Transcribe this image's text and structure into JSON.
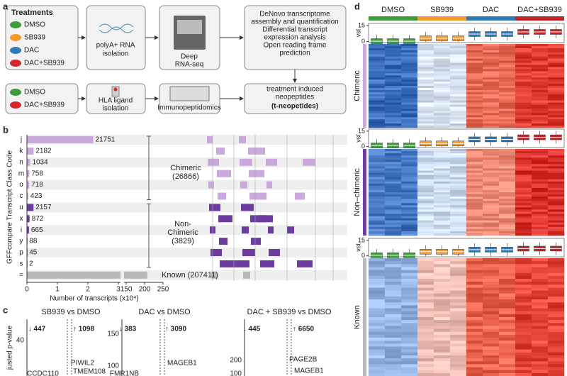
{
  "panel_labels": [
    "a",
    "b",
    "c",
    "d"
  ],
  "workflow": {
    "treatments_title": "Treatments",
    "treatments": [
      {
        "name": "DMSO",
        "color": "#3f9a3c"
      },
      {
        "name": "SB939",
        "color": "#f39a2b"
      },
      {
        "name": "DAC",
        "color": "#2f79b5"
      },
      {
        "name": "DAC+SB939",
        "color": "#d7262b"
      }
    ],
    "ligand_treatments": [
      {
        "name": "DMSO",
        "color": "#3f9a3c"
      },
      {
        "name": "DAC+SB939",
        "color": "#d7262b"
      }
    ],
    "rna_isolation": [
      "polyA+ RNA",
      "isolation"
    ],
    "sequencing": [
      "Deep",
      "RNA-seq"
    ],
    "analysis": [
      "DeNovo transcriptome",
      "assembly and quantification",
      "Differential transcript",
      "expression analysis",
      "Open reading frame",
      "prediction"
    ],
    "ligand_isolation": [
      "HLA ligand",
      "isolation"
    ],
    "immunopeptidomics": "Immunopeptidomics",
    "result": [
      "treatment induced",
      "neopeptides"
    ],
    "result_name": "(t-neopetides)"
  },
  "chart_data": [
    {
      "type": "hbar",
      "ylabel": "GFFcompare Transcript Class Code",
      "xlabel": "Number of transcripts (x10⁴)",
      "categories": [
        "j",
        "k",
        "n",
        "m",
        "o",
        "c",
        "u",
        "x",
        "i",
        "y",
        "p",
        "s",
        "="
      ],
      "values": [
        21751,
        2182,
        1034,
        758,
        718,
        423,
        2157,
        872,
        665,
        88,
        45,
        2,
        207411
      ],
      "colors": [
        "#c9a8dc",
        "#c9a8dc",
        "#c9a8dc",
        "#c9a8dc",
        "#c9a8dc",
        "#c9a8dc",
        "#6b3d9e",
        "#6b3d9e",
        "#6b3d9e",
        "#6b3d9e",
        "#6b3d9e",
        "#6b3d9e",
        "#b9b9b9"
      ],
      "value_labels": [
        "21751",
        "2182",
        "1034",
        "758",
        "718",
        "423",
        "2157",
        "872",
        "665",
        "88",
        "45",
        "2",
        null
      ],
      "xlim": [
        0,
        250000
      ],
      "xbreak": [
        30700,
        144000
      ],
      "xticks": [
        0,
        {
          "value": 10000,
          "label": "1"
        },
        {
          "value": 20000,
          "label": "2"
        },
        {
          "value": 30000,
          "label": "3"
        },
        {
          "value": 150000,
          "label": "150"
        },
        {
          "value": 200000,
          "label": "200"
        },
        {
          "value": 250000,
          "label": "250"
        }
      ],
      "annotations": [
        [
          "Chimeric",
          "(26866)"
        ],
        [
          "Non-",
          "Chimeric",
          "(3829)"
        ],
        [
          "Known (207411)"
        ]
      ]
    },
    {
      "type": "box",
      "groups": [
        {
          "name": "DMSO",
          "color": "#3f9a3c"
        },
        {
          "name": "SB939",
          "color": "#f39a2b"
        },
        {
          "name": "DAC",
          "color": "#2f79b5"
        },
        {
          "name": "DAC+SB939",
          "color": "#c0272d"
        }
      ],
      "ylabel": "vst",
      "ylim": [
        -1,
        17
      ],
      "yticks": [
        0,
        15
      ],
      "blocks": [
        {
          "name": "Chimeric",
          "color": "#c9a8dc",
          "medians": [
            0.3,
            0.3,
            0.3,
            3,
            3,
            3,
            7,
            7,
            7,
            9,
            9,
            9
          ]
        },
        {
          "name": "Non–chimeric",
          "color": "#6b3d9e",
          "medians": [
            1,
            1,
            1,
            3,
            3,
            3,
            7,
            7,
            7,
            9,
            9,
            9
          ]
        },
        {
          "name": "Known",
          "color": "#b9b9b9",
          "medians": [
            0.5,
            0.5,
            0.5,
            4,
            4,
            4,
            6,
            6,
            6,
            7,
            7,
            7
          ]
        }
      ]
    }
  ],
  "volcano_plots": {
    "ylabel": "justed p-value",
    "plots": [
      {
        "title": "SB939 vs DMSO",
        "down": "↓ 447",
        "up": "↑ 1098",
        "yticks": [
          40
        ],
        "genes": [
          "CCDC110",
          "PIWIL2",
          "TMEM108"
        ]
      },
      {
        "title": "DAC vs DMSO",
        "down": "↓ 383",
        "up": "↑ 3090",
        "yticks": [
          150,
          100
        ],
        "genes": [
          "FMR1NB",
          "MAGEB1"
        ]
      },
      {
        "title": "DAC + SB939 vs DMSO",
        "down": "↓ 445",
        "up": "↑ 6650",
        "yticks": [
          200,
          100
        ],
        "genes": [
          "PAGE2B",
          "MAGEB1"
        ]
      }
    ]
  }
}
